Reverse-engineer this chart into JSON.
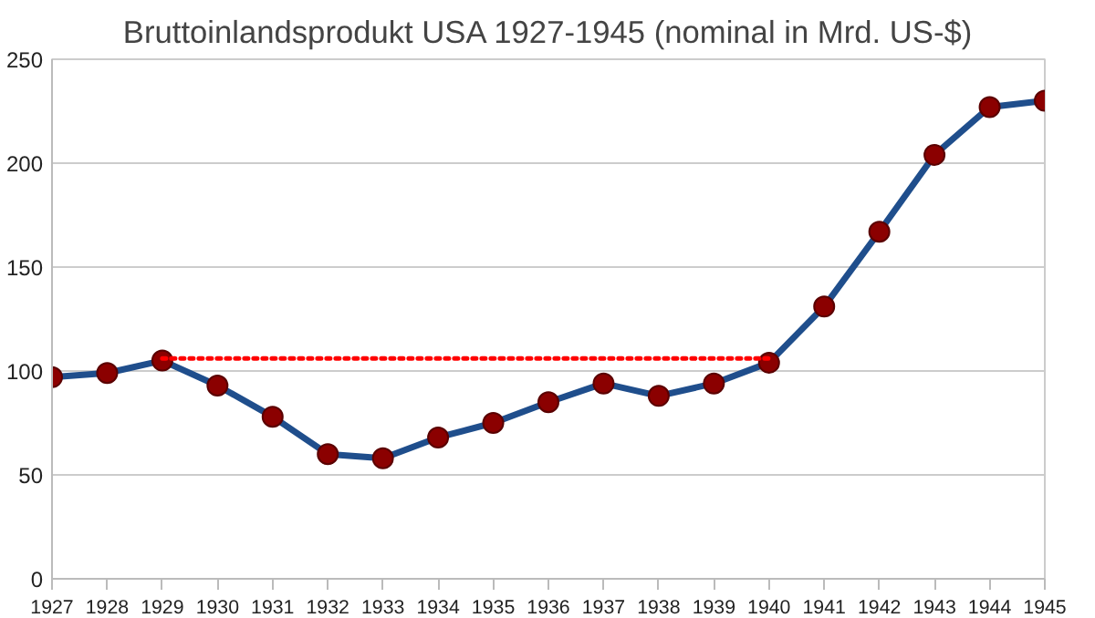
{
  "chart_data": {
    "type": "line",
    "title": "Bruttoinlandsprodukt USA 1927-1945 (nominal in Mrd. US-$)",
    "x": [
      1927,
      1928,
      1929,
      1930,
      1931,
      1932,
      1933,
      1934,
      1935,
      1936,
      1937,
      1938,
      1939,
      1940,
      1941,
      1942,
      1943,
      1944,
      1945
    ],
    "series": [
      {
        "color": "#1f4e8c",
        "marker": "circle",
        "line_style": "solid",
        "values": [
          97,
          99,
          105,
          93,
          78,
          60,
          58,
          68,
          75,
          85,
          94,
          88,
          94,
          104,
          131,
          167,
          204,
          227,
          230
        ]
      },
      {
        "color": "#ff0000",
        "marker": "none",
        "line_style": "dotted",
        "x": [
          1929,
          1940
        ],
        "values": [
          106,
          106
        ]
      }
    ],
    "xlim": [
      1927,
      1945
    ],
    "ylim": [
      0,
      250
    ],
    "xticks": [
      1927,
      1928,
      1929,
      1930,
      1931,
      1932,
      1933,
      1934,
      1935,
      1936,
      1937,
      1938,
      1939,
      1940,
      1941,
      1942,
      1943,
      1944,
      1945
    ],
    "yticks": [
      0,
      50,
      100,
      150,
      200,
      250
    ],
    "grid": "y"
  }
}
